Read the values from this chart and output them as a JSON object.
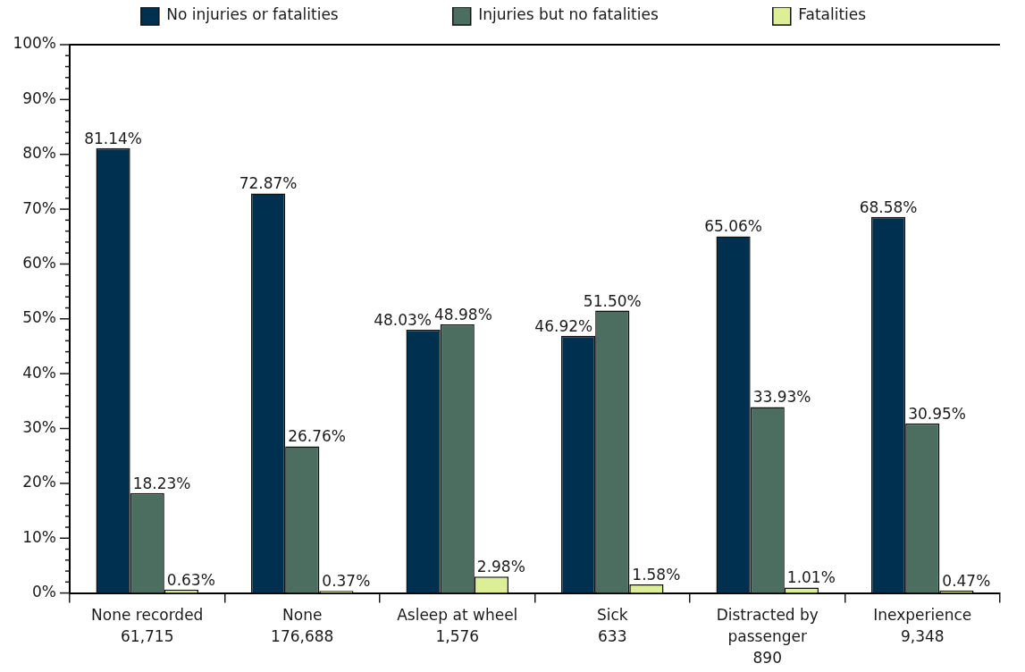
{
  "chart_data": {
    "type": "bar",
    "categories": [
      "None recorded\n61,715",
      "None\n176,688",
      "Asleep at wheel\n1,576",
      "Sick\n633",
      "Distracted by\npassenger\n890",
      "Inexperience\n9,348"
    ],
    "series": [
      {
        "name": "No injuries or fatalities",
        "color": "#003050",
        "values": [
          81.14,
          72.87,
          48.03,
          46.92,
          65.06,
          68.58
        ],
        "value_labels": [
          "81.14%",
          "72.87%",
          "48.03%",
          "46.92%",
          "65.06%",
          "68.58%"
        ]
      },
      {
        "name": "Injuries but no fatalities",
        "color": "#4b6e60",
        "values": [
          18.23,
          26.76,
          48.98,
          51.5,
          33.93,
          30.95
        ],
        "value_labels": [
          "18.23%",
          "26.76%",
          "48.98%",
          "51.50%",
          "33.93%",
          "30.95%"
        ]
      },
      {
        "name": "Fatalities",
        "color": "#dcee96",
        "values": [
          0.63,
          0.37,
          2.98,
          1.58,
          1.01,
          0.47
        ],
        "value_labels": [
          "0.63%",
          "0.37%",
          "2.98%",
          "1.58%",
          "1.01%",
          "0.47%"
        ]
      }
    ],
    "ylim": [
      0,
      100
    ],
    "yticks": [
      {
        "value": 0,
        "label": "0%"
      },
      {
        "value": 2,
        "label": null
      },
      {
        "value": 4,
        "label": null
      },
      {
        "value": 6,
        "label": null
      },
      {
        "value": 8,
        "label": null
      },
      {
        "value": 10,
        "label": "10%"
      },
      {
        "value": 12,
        "label": null
      },
      {
        "value": 14,
        "label": null
      },
      {
        "value": 16,
        "label": null
      },
      {
        "value": 18,
        "label": null
      },
      {
        "value": 20,
        "label": "20%"
      },
      {
        "value": 22,
        "label": null
      },
      {
        "value": 24,
        "label": null
      },
      {
        "value": 26,
        "label": null
      },
      {
        "value": 28,
        "label": null
      },
      {
        "value": 30,
        "label": "30%"
      },
      {
        "value": 32,
        "label": null
      },
      {
        "value": 34,
        "label": null
      },
      {
        "value": 36,
        "label": null
      },
      {
        "value": 38,
        "label": null
      },
      {
        "value": 40,
        "label": "40%"
      },
      {
        "value": 42,
        "label": null
      },
      {
        "value": 44,
        "label": null
      },
      {
        "value": 46,
        "label": null
      },
      {
        "value": 48,
        "label": null
      },
      {
        "value": 50,
        "label": "50%"
      },
      {
        "value": 52,
        "label": null
      },
      {
        "value": 54,
        "label": null
      },
      {
        "value": 56,
        "label": null
      },
      {
        "value": 58,
        "label": null
      },
      {
        "value": 60,
        "label": "60%"
      },
      {
        "value": 62,
        "label": null
      },
      {
        "value": 64,
        "label": null
      },
      {
        "value": 66,
        "label": null
      },
      {
        "value": 68,
        "label": null
      },
      {
        "value": 70,
        "label": "70%"
      },
      {
        "value": 72,
        "label": null
      },
      {
        "value": 74,
        "label": null
      },
      {
        "value": 76,
        "label": null
      },
      {
        "value": 78,
        "label": null
      },
      {
        "value": 80,
        "label": "80%"
      },
      {
        "value": 82,
        "label": null
      },
      {
        "value": 84,
        "label": null
      },
      {
        "value": 86,
        "label": null
      },
      {
        "value": 88,
        "label": null
      },
      {
        "value": 90,
        "label": "90%"
      },
      {
        "value": 92,
        "label": null
      },
      {
        "value": 94,
        "label": null
      },
      {
        "value": 96,
        "label": null
      },
      {
        "value": 98,
        "label": null
      },
      {
        "value": 100,
        "label": "100%"
      }
    ],
    "grid": false,
    "legend": "top"
  }
}
